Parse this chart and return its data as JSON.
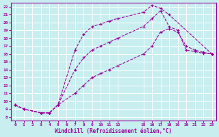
{
  "xlabel": "Windchill (Refroidissement éolien,°C)",
  "bg_color": "#c8eef0",
  "grid_color": "#ffffff",
  "line_color": "#990099",
  "xlim": [
    -0.5,
    23.5
  ],
  "ylim": [
    7.5,
    22.5
  ],
  "xticks": [
    0,
    1,
    2,
    3,
    4,
    5,
    6,
    7,
    8,
    9,
    10,
    11,
    12,
    15,
    16,
    17,
    18,
    19,
    20,
    21,
    22,
    23
  ],
  "yticks": [
    8,
    9,
    10,
    11,
    12,
    13,
    14,
    15,
    16,
    17,
    18,
    19,
    20,
    21,
    22
  ],
  "line1_x": [
    0,
    1,
    3,
    4,
    5,
    7,
    8,
    9,
    10,
    11,
    12,
    15,
    16,
    17,
    18,
    23
  ],
  "line1_y": [
    9.5,
    9.0,
    8.5,
    8.5,
    9.5,
    16.5,
    18.5,
    19.5,
    19.8,
    20.2,
    20.5,
    21.3,
    22.2,
    21.8,
    21.0,
    16.0
  ],
  "line2_x": [
    0,
    1,
    3,
    4,
    5,
    7,
    8,
    9,
    10,
    11,
    12,
    15,
    16,
    17,
    18,
    19,
    20,
    21,
    22,
    23
  ],
  "line2_y": [
    9.5,
    9.0,
    8.5,
    8.5,
    9.5,
    14.0,
    15.5,
    16.5,
    17.0,
    17.5,
    18.0,
    19.5,
    20.5,
    21.5,
    19.5,
    19.0,
    16.5,
    16.3,
    16.1,
    16.0
  ],
  "line3_x": [
    0,
    1,
    3,
    4,
    5,
    7,
    8,
    9,
    10,
    11,
    12,
    15,
    16,
    17,
    18,
    19,
    20,
    21,
    22,
    23
  ],
  "line3_y": [
    9.5,
    9.0,
    8.5,
    8.5,
    9.5,
    11.0,
    12.0,
    13.0,
    13.5,
    14.0,
    14.5,
    16.0,
    17.0,
    18.8,
    19.2,
    18.8,
    17.0,
    16.5,
    16.2,
    16.0
  ]
}
